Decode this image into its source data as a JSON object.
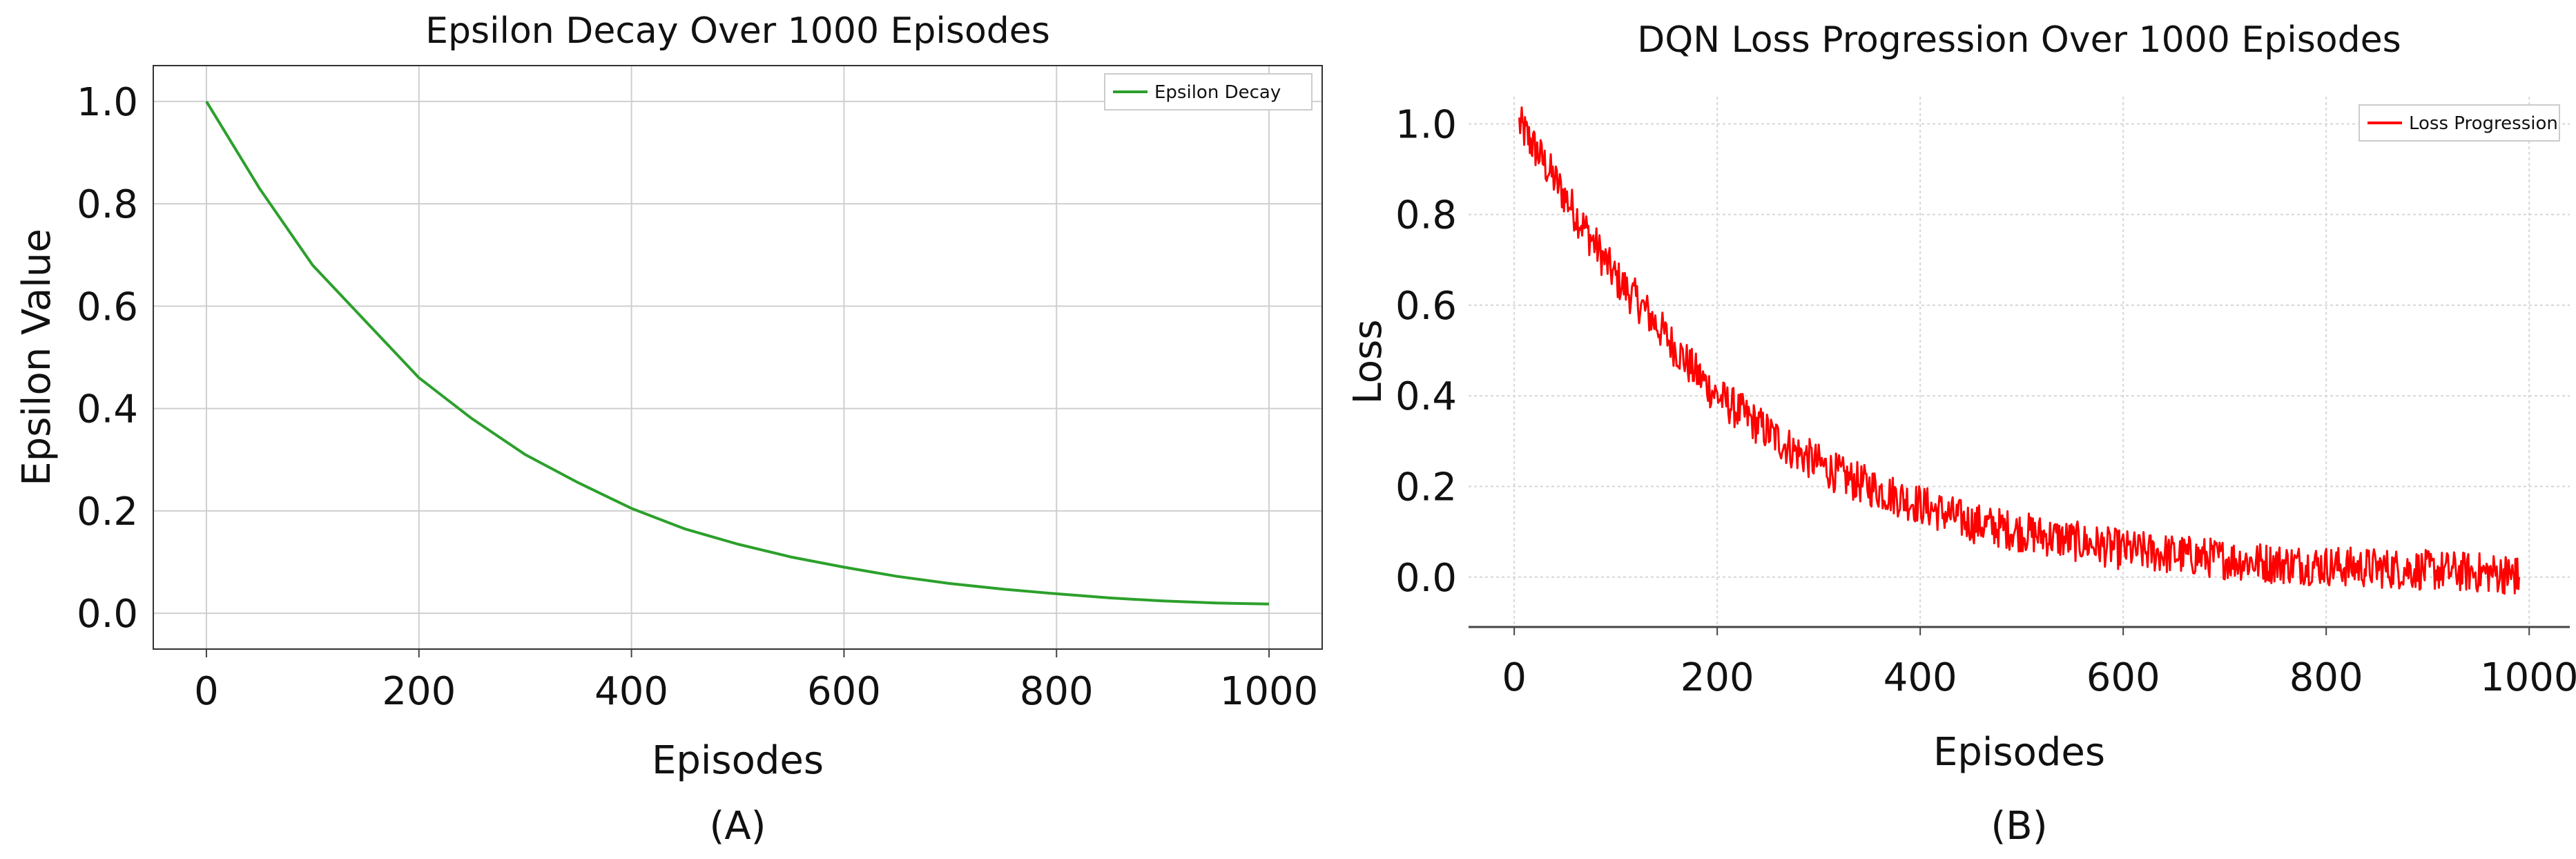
{
  "chart_data": [
    {
      "type": "line",
      "panel_label": "(A)",
      "title": "Epsilon Decay Over 1000 Episodes",
      "xlabel": "Episodes",
      "ylabel": "Epsilon Value",
      "xlim": [
        -50,
        1050
      ],
      "ylim": [
        -0.07,
        1.07
      ],
      "xticks": [
        0,
        200,
        400,
        600,
        800,
        1000
      ],
      "yticks": [
        0.0,
        0.2,
        0.4,
        0.6,
        0.8,
        1.0
      ],
      "xtick_labels": [
        "0",
        "200",
        "400",
        "600",
        "800",
        "1000"
      ],
      "ytick_labels": [
        "0.0",
        "0.2",
        "0.4",
        "0.6",
        "0.8",
        "1.0"
      ],
      "grid": true,
      "legend_position": "top-right",
      "series": [
        {
          "name": "Epsilon Decay",
          "color": "#2ca02c",
          "x": [
            0,
            50,
            100,
            150,
            200,
            250,
            300,
            350,
            400,
            450,
            500,
            550,
            600,
            650,
            700,
            750,
            800,
            850,
            900,
            950,
            1000
          ],
          "y": [
            1.0,
            0.83,
            0.68,
            0.57,
            0.46,
            0.38,
            0.31,
            0.255,
            0.205,
            0.165,
            0.135,
            0.11,
            0.09,
            0.072,
            0.058,
            0.047,
            0.038,
            0.03,
            0.024,
            0.02,
            0.018
          ]
        }
      ]
    },
    {
      "type": "line",
      "panel_label": "(B)",
      "title": "DQN Loss Progression Over 1000 Episodes",
      "xlabel": "Episodes",
      "ylabel": "Loss",
      "xlim": [
        -45,
        1040
      ],
      "ylim": [
        -0.11,
        1.06
      ],
      "xticks": [
        0,
        200,
        400,
        600,
        800,
        1000
      ],
      "yticks": [
        0.0,
        0.2,
        0.4,
        0.6,
        0.8,
        1.0
      ],
      "xtick_labels": [
        "0",
        "200",
        "400",
        "600",
        "800",
        "1000"
      ],
      "ytick_labels": [
        "0.0",
        "0.2",
        "0.4",
        "0.6",
        "0.8",
        "1.0"
      ],
      "grid": true,
      "legend_position": "top-right",
      "series": [
        {
          "name": "Loss Progression",
          "color": "#ff0000",
          "x": [
            5,
            25,
            50,
            75,
            100,
            125,
            150,
            175,
            200,
            225,
            250,
            275,
            300,
            325,
            350,
            375,
            400,
            425,
            450,
            475,
            500,
            525,
            550,
            575,
            600,
            625,
            650,
            675,
            700,
            725,
            750,
            775,
            800,
            825,
            850,
            875,
            900,
            925,
            950,
            975,
            990
          ],
          "y": [
            1.0,
            0.93,
            0.84,
            0.75,
            0.66,
            0.6,
            0.53,
            0.46,
            0.4,
            0.36,
            0.32,
            0.28,
            0.25,
            0.22,
            0.2,
            0.18,
            0.16,
            0.14,
            0.12,
            0.11,
            0.1,
            0.09,
            0.08,
            0.07,
            0.06,
            0.055,
            0.05,
            0.045,
            0.04,
            0.035,
            0.03,
            0.028,
            0.025,
            0.022,
            0.02,
            0.018,
            0.015,
            0.013,
            0.01,
            0.008,
            0.0
          ],
          "noise_amplitude": 0.045
        }
      ]
    }
  ]
}
